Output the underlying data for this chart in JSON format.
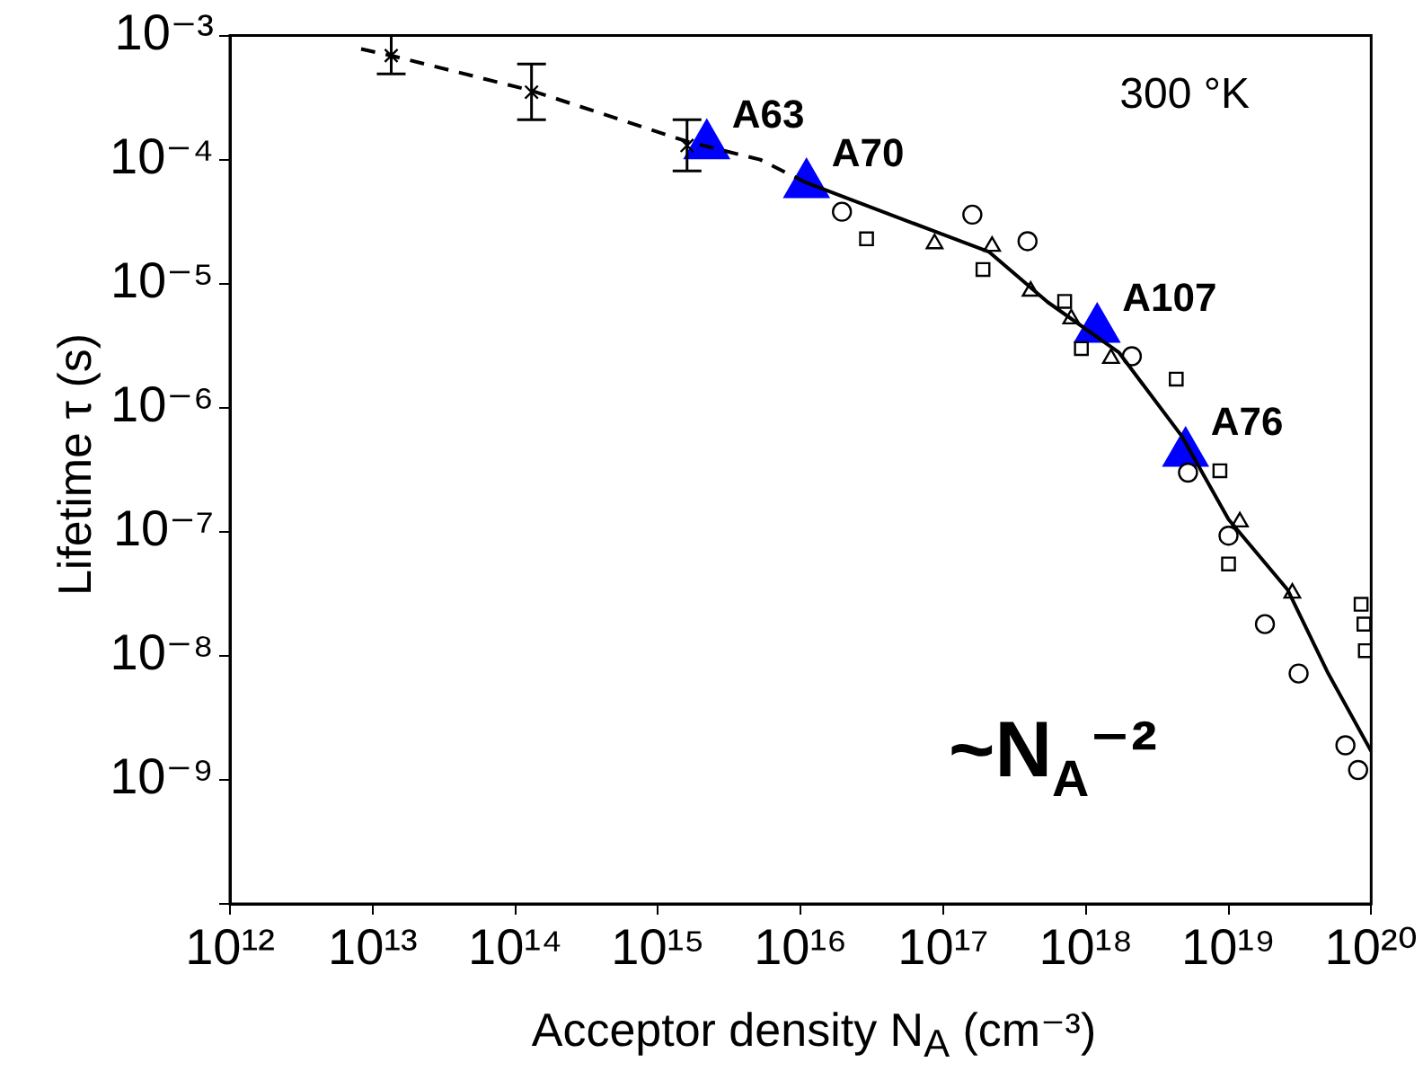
{
  "chart_data": {
    "type": "scatter",
    "xlabel": "Acceptor density  N$_{A}$ (cm⁻³)",
    "ylabel": "Lifetime τ (s)",
    "log": "xy",
    "grid": false,
    "legend": false,
    "xlim": [
      1000000000000.0,
      1e+20
    ],
    "ylim": [
      1e-10,
      0.001
    ],
    "xticks": [
      {
        "value": 1000000000000.0,
        "label": "10¹²"
      },
      {
        "value": 10000000000000.0,
        "label": "10¹³"
      },
      {
        "value": 100000000000000.0,
        "label": "10¹⁴"
      },
      {
        "value": 1000000000000000.0,
        "label": "10¹⁵"
      },
      {
        "value": 1e+16,
        "label": "10¹⁶"
      },
      {
        "value": 1e+17,
        "label": "10¹⁷"
      },
      {
        "value": 1e+18,
        "label": "10¹⁸"
      },
      {
        "value": 1e+19,
        "label": "10¹⁹"
      },
      {
        "value": 1e+20,
        "label": "10²⁰"
      }
    ],
    "yticks": [
      {
        "value": 1e-10,
        "label": null
      },
      {
        "value": 1e-09,
        "label": "10⁻⁹"
      },
      {
        "value": 1e-08,
        "label": "10⁻⁸"
      },
      {
        "value": 1e-07,
        "label": "10⁻⁷"
      },
      {
        "value": 1e-06,
        "label": "10⁻⁶"
      },
      {
        "value": 1e-05,
        "label": "10⁻⁵"
      },
      {
        "value": 0.0001,
        "label": "10⁻⁴"
      },
      {
        "value": 0.001,
        "label": "10⁻³"
      }
    ],
    "series": [
      {
        "type": "line",
        "line_style": "dashed",
        "marker": "none",
        "color": "#000000",
        "x": [
          8300000000000.0,
          13500000000000.0,
          130000000000000.0,
          1600000000000000.0,
          5200000000000000.0,
          1.1e+16
        ],
        "values": [
          0.00078,
          0.00069,
          0.00036,
          0.00014,
          0.0001,
          6.5e-05
        ]
      },
      {
        "type": "line",
        "line_style": "solid",
        "marker": "none",
        "color": "#000000",
        "x": [
          1.1e+16,
          2.1e+17,
          5.4e+17,
          1.7e+18,
          4.7e+18,
          1e+19,
          2.6e+19,
          5e+19,
          1e+20
        ],
        "values": [
          6.5e-05,
          1.8e-05,
          7.1e-06,
          2.8e-06,
          5.9e-07,
          1.26e-07,
          3.4e-08,
          7.2e-09,
          1.7e-09
        ]
      },
      {
        "type": "scatter",
        "marker": "cross",
        "color": "#000000",
        "x": [
          13500000000000.0,
          130000000000000.0,
          1600000000000000.0
        ],
        "values": [
          0.00069,
          0.00035,
          0.00013
        ],
        "errors": [
          [
            0.00049,
            0.001
          ],
          [
            0.00021,
            0.00059
          ],
          [
            8.1e-05,
            0.00021
          ]
        ]
      },
      {
        "type": "scatter",
        "marker": "circle",
        "color": "#000000",
        "x": [
          1.95e+16,
          1.6e+17,
          3.9e+17,
          2.1e+18,
          5.2e+18,
          1e+19,
          1.8e+19,
          3.1e+19,
          6.6e+19,
          8.1e+19
        ],
        "values": [
          3.8e-05,
          3.6e-05,
          2.2e-05,
          2.6e-06,
          3e-07,
          9.3e-08,
          1.8e-08,
          7.2e-09,
          1.9e-09,
          1.2e-09
        ]
      },
      {
        "type": "scatter",
        "marker": "square",
        "color": "#000000",
        "x": [
          2.9e+16,
          1.9e+17,
          7.1e+17,
          9.3e+17,
          4.3e+18,
          8.7e+18,
          1e+19,
          8.5e+19,
          8.9e+19,
          9.1e+19
        ],
        "values": [
          2.3e-05,
          1.3e-05,
          7.2e-06,
          3e-06,
          1.7e-06,
          3.1e-07,
          5.5e-08,
          2.6e-08,
          1.8e-08,
          1.1e-08
        ]
      },
      {
        "type": "scatter",
        "marker": "triangle",
        "color": "#000000",
        "x": [
          8.7e+16,
          2.2e+17,
          4.1e+17,
          7.9e+17,
          1.5e+18,
          1.2e+19,
          2.8e+19
        ],
        "values": [
          2.1e-05,
          2e-05,
          8.7e-06,
          5.2e-06,
          2.5e-06,
          1.2e-07,
          3.2e-08
        ]
      },
      {
        "type": "scatter",
        "marker": "triangle",
        "color": "#0000ff",
        "x": [
          2200000000000000.0,
          1.1e+16,
          1.2e+18,
          5e+18
        ],
        "values": [
          0.00013,
          6.3e-05,
          4.3e-06,
          4.3e-07
        ]
      }
    ],
    "annotations": [
      {
        "text": "A63",
        "x": 2200000000000000.0,
        "y": 0.00013
      },
      {
        "text": "A70",
        "x": 1.1e+16,
        "y": 6.3e-05
      },
      {
        "text": "A107",
        "x": 1.2e+18,
        "y": 4.3e-06
      },
      {
        "text": "A76",
        "x": 5e+18,
        "y": 4.3e-07
      },
      "300 °K",
      "~N$_{A}$⁻²"
    ]
  }
}
